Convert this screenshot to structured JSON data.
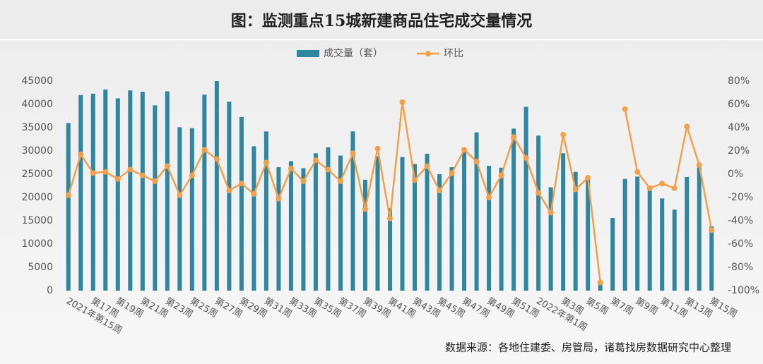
{
  "chart_data": {
    "type": "bar_line",
    "title": "图：监测重点15城新建商品住宅成交量情况",
    "source": "数据来源：各地住建委、房管局，诸葛找房数据研究中心整理",
    "categories": [
      "2021年第15周",
      null,
      "第17周",
      null,
      "第19周",
      null,
      "第21周",
      null,
      "第23周",
      null,
      "第25周",
      null,
      "第27周",
      null,
      "第29周",
      null,
      "第31周",
      null,
      "第33周",
      null,
      "第35周",
      null,
      "第37周",
      null,
      "第39周",
      null,
      "第41周",
      null,
      "第43周",
      null,
      "第45周",
      null,
      "第47周",
      null,
      "第49周",
      null,
      "第51周",
      null,
      "2022年第1周",
      null,
      "第3周",
      null,
      "第5周",
      null,
      "第7周",
      null,
      "第9周",
      null,
      "第11周",
      null,
      "第13周",
      null,
      "第15周"
    ],
    "series": [
      {
        "name": "成交量（套）",
        "color": "#2e86a0",
        "values": [
          36000,
          42000,
          42300,
          43200,
          41300,
          43000,
          42700,
          39800,
          42800,
          35100,
          34900,
          42100,
          45000,
          40600,
          37300,
          31000,
          34200,
          26500,
          27800,
          26300,
          29500,
          30800,
          29000,
          34200,
          23800,
          28900,
          17700,
          28700,
          27200,
          29400,
          25000,
          26500,
          30000,
          34000,
          26800,
          26400,
          34800,
          39500,
          33300,
          22200,
          29500,
          25500,
          24000,
          1700,
          15600,
          24000,
          24500,
          21500,
          19800,
          17400,
          24400,
          26500,
          13800
        ]
      },
      {
        "name": "环比",
        "color": "#f4a04a",
        "axis": "y2",
        "values": [
          -18,
          17,
          1,
          2,
          -4,
          4,
          -1,
          -6,
          7,
          -18,
          -1,
          21,
          13,
          -14,
          -8,
          -17,
          10,
          -21,
          5,
          -6,
          12,
          4,
          -6,
          18,
          -30,
          22,
          -38,
          62,
          -5,
          7,
          -14,
          1,
          21,
          11,
          -20,
          -1,
          32,
          14,
          -16,
          -33,
          34,
          -13,
          -3,
          -93,
          null,
          56,
          2,
          -12,
          -8,
          -12,
          41,
          8,
          -48
        ]
      }
    ],
    "ylim": [
      0,
      45000
    ],
    "yticks": [
      0,
      5000,
      10000,
      15000,
      20000,
      25000,
      30000,
      35000,
      40000,
      45000
    ],
    "y2lim": [
      -100,
      80
    ],
    "y2ticks": [
      {
        "value": -100,
        "label": "-100%"
      },
      {
        "value": -80,
        "label": "-80%"
      },
      {
        "value": -60,
        "label": "-60%"
      },
      {
        "value": -40,
        "label": "-40%"
      },
      {
        "value": -20,
        "label": "-20%"
      },
      {
        "value": 0,
        "label": "0%"
      },
      {
        "value": 20,
        "label": "20%"
      },
      {
        "value": 40,
        "label": "40%"
      },
      {
        "value": 60,
        "label": "60%"
      },
      {
        "value": 80,
        "label": "80%"
      }
    ]
  }
}
